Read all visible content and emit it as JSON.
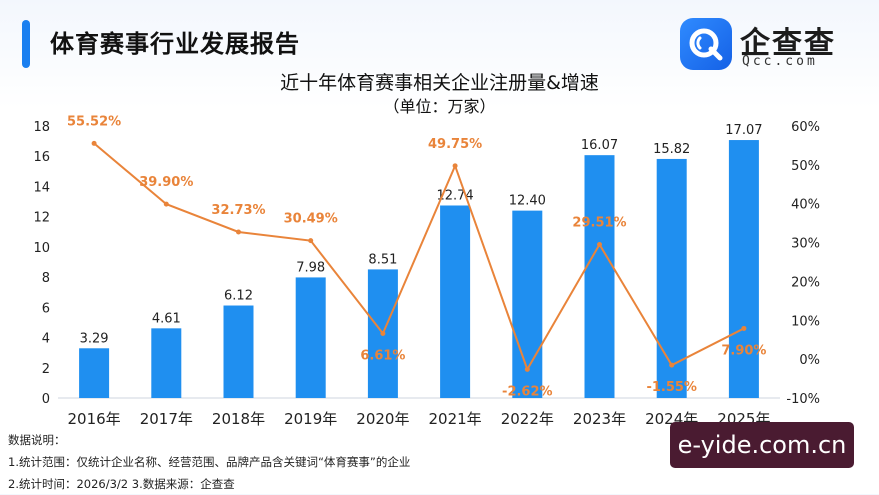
{
  "header": {
    "title": "体育赛事行业发展报告"
  },
  "logo": {
    "name": "企查查",
    "sub": "Qcc.com",
    "icon": "qcc-logo-icon"
  },
  "chart_data": {
    "type": "bar",
    "title": "近十年体育赛事相关企业注册量&增速",
    "unit": "（单位：万家）",
    "categories": [
      "2016年",
      "2017年",
      "2018年",
      "2019年",
      "2020年",
      "2021年",
      "2022年",
      "2023年",
      "2024年",
      "2025年"
    ],
    "series": [
      {
        "type": "bar",
        "axis": "left",
        "color": "#1f8ff0",
        "values": [
          3.29,
          4.61,
          6.12,
          7.98,
          8.51,
          12.74,
          12.4,
          16.07,
          15.82,
          17.07
        ],
        "labels": [
          "3.29",
          "4.61",
          "6.12",
          "7.98",
          "8.51",
          "12.74",
          "12.40",
          "16.07",
          "15.82",
          "17.07"
        ]
      },
      {
        "type": "line",
        "axis": "right",
        "color": "#e9843a",
        "values": [
          55.52,
          39.9,
          32.73,
          30.49,
          6.61,
          49.75,
          -2.62,
          29.51,
          -1.55,
          7.9
        ],
        "labels": [
          "55.52%",
          "39.90%",
          "32.73%",
          "30.49%",
          "6.61%",
          "49.75%",
          "-2.62%",
          "29.51%",
          "-1.55%",
          "7.90%"
        ]
      }
    ],
    "ylim_left": [
      0,
      18
    ],
    "yticks_left": [
      "0",
      "2",
      "4",
      "6",
      "8",
      "10",
      "12",
      "14",
      "16",
      "18"
    ],
    "ylim_right": [
      -10,
      60
    ],
    "yticks_right": [
      "-10%",
      "0%",
      "10%",
      "20%",
      "30%",
      "40%",
      "50%",
      "60%"
    ],
    "grid": false,
    "legend": "none"
  },
  "notes": {
    "heading": "数据说明：",
    "line1": "1.统计范围：仅统计企业名称、经营范围、品牌产品含关键词“体育赛事”的企业",
    "line2": "2.统计时间：2026/3/2  3.数据来源：企查查"
  },
  "watermark": {
    "text": "e-yide.com.cn"
  },
  "colors": {
    "accent": "#1a7ff0",
    "bar": "#1f8ff0",
    "line": "#e9843a",
    "watermark_bg": "#4a1b31"
  }
}
